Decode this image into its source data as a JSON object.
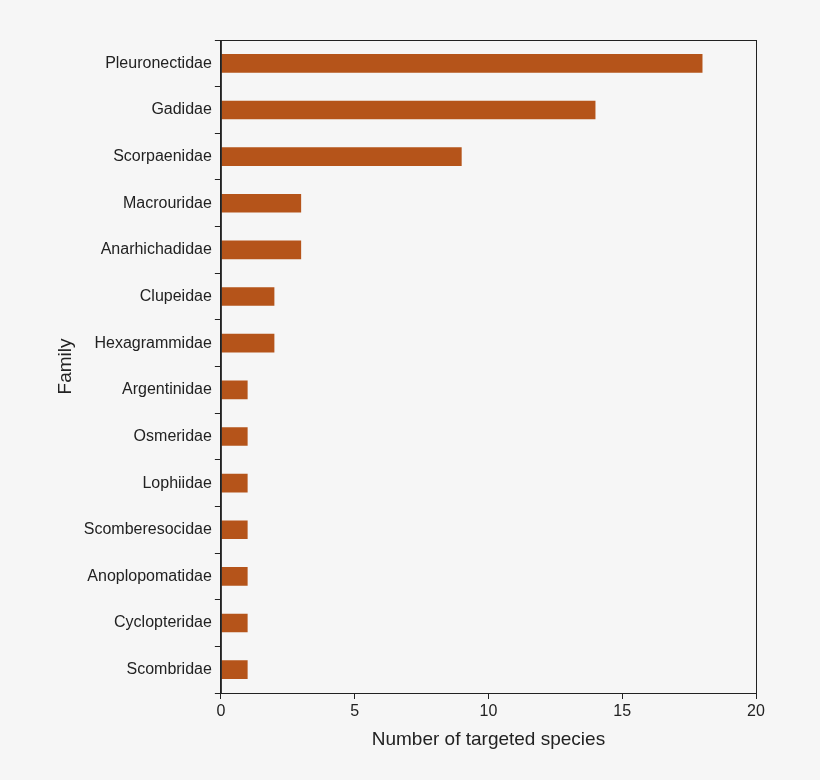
{
  "chart_data": {
    "type": "bar",
    "orientation": "horizontal",
    "x_label": "Number of targeted species",
    "y_label": "Family",
    "categories": [
      "Pleuronectidae",
      "Gadidae",
      "Scorpaenidae",
      "Macrouridae",
      "Anarhichadidae",
      "Clupeidae",
      "Hexagrammidae",
      "Argentinidae",
      "Osmeridae",
      "Lophiidae",
      "Scomberesocidae",
      "Anoplopomatidae",
      "Cyclopteridae",
      "Scombridae"
    ],
    "values": [
      18,
      14,
      9,
      3,
      3,
      2,
      2,
      1,
      1,
      1,
      1,
      1,
      1,
      1
    ],
    "color": "#b5541a",
    "xlim": [
      0,
      20
    ],
    "xticks": [
      0,
      5,
      10,
      15,
      20
    ],
    "grid": false
  }
}
